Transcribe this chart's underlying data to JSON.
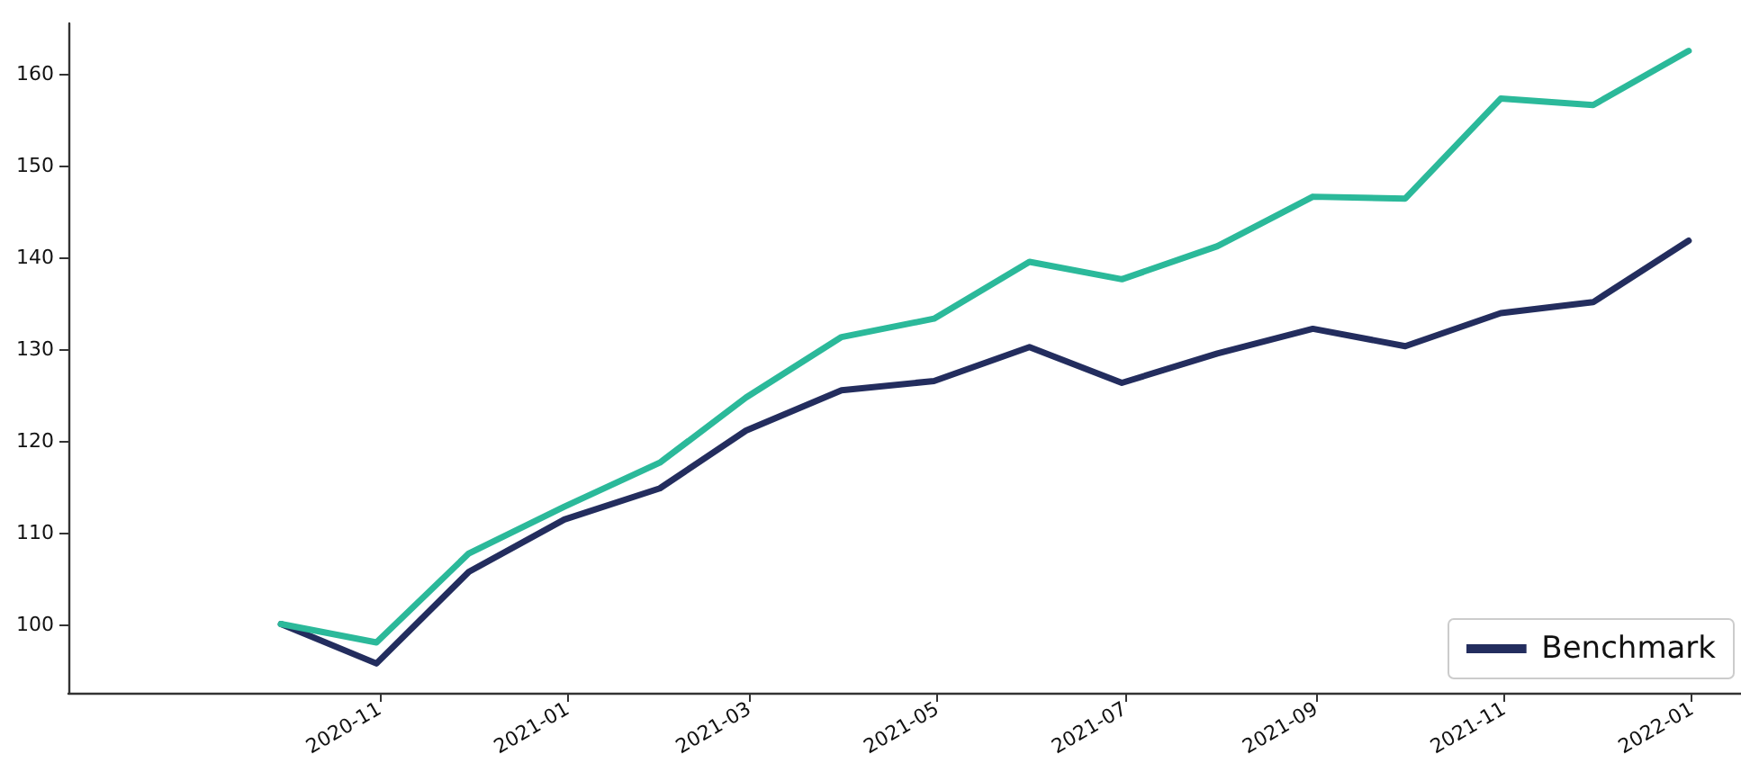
{
  "chart_data": {
    "type": "line",
    "x": [
      "2020-09-30",
      "2020-10-31",
      "2020-11-30",
      "2020-12-31",
      "2021-01-31",
      "2021-02-28",
      "2021-03-31",
      "2021-04-30",
      "2021-05-31",
      "2021-06-30",
      "2021-07-31",
      "2021-08-31",
      "2021-09-30",
      "2021-10-31",
      "2021-11-30",
      "2021-12-31"
    ],
    "series": [
      {
        "color": "#2bb99a",
        "values": [
          100,
          98.0,
          107.7,
          112.8,
          117.6,
          124.7,
          131.3,
          133.3,
          139.5,
          137.6,
          141.2,
          146.6,
          146.4,
          157.3,
          156.6,
          162.5
        ]
      },
      {
        "name": "Benchmark",
        "color": "#232d5e",
        "values": [
          100,
          95.7,
          105.7,
          111.4,
          114.8,
          121.1,
          125.5,
          126.5,
          130.2,
          126.3,
          129.5,
          132.2,
          130.3,
          133.9,
          135.1,
          141.8
        ]
      }
    ],
    "xlim": [
      "2020-07-23",
      "2022-01-17"
    ],
    "xticks": [
      "2020-11",
      "2021-01",
      "2021-03",
      "2021-05",
      "2021-07",
      "2021-09",
      "2021-11",
      "2022-01"
    ],
    "ylim": [
      92.5,
      165.5
    ],
    "yticks": [
      100,
      110,
      120,
      130,
      140,
      150,
      160
    ],
    "grid": false,
    "legend": "bottom right",
    "marker": "none",
    "line_style": "solid"
  }
}
